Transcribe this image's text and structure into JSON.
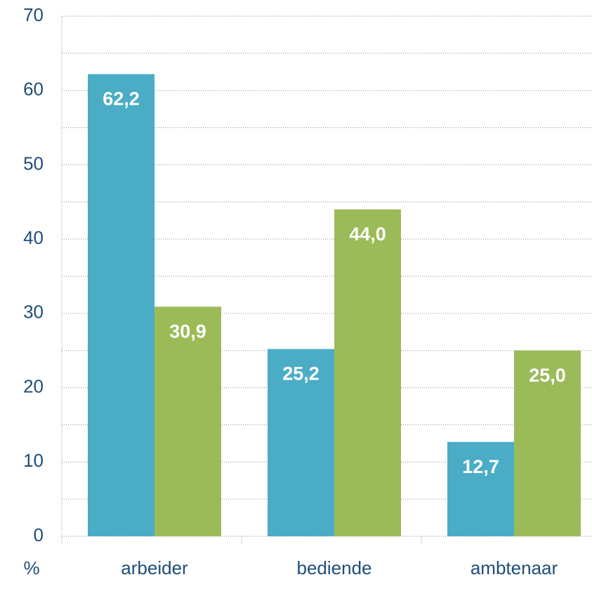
{
  "chart_data": {
    "type": "bar",
    "categories": [
      "arbeider",
      "bediende",
      "ambtenaar"
    ],
    "series": [
      {
        "color": "#4bacc6",
        "values": [
          62.2,
          25.2,
          12.7
        ],
        "value_labels": [
          "62,2",
          "25,2",
          "12,7"
        ]
      },
      {
        "color": "#9bbb59",
        "values": [
          30.9,
          44.0,
          25.0
        ],
        "value_labels": [
          "30,9",
          "44,0",
          "25,0"
        ]
      }
    ],
    "y_label": "%",
    "ylim": [
      0,
      70
    ],
    "yticks": [
      0,
      10,
      20,
      30,
      40,
      50,
      60,
      70
    ],
    "yminorticks": [
      5,
      15,
      25,
      35,
      45,
      55,
      65
    ],
    "grid": true
  }
}
